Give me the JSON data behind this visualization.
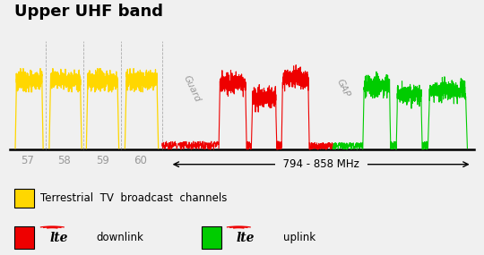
{
  "title": "Upper UHF band",
  "title_fontsize": 13,
  "bg_color": "#f0f0f0",
  "spectrum_bg": "#ffffff",
  "channel_labels": [
    "57",
    "58",
    "59",
    "60"
  ],
  "freq_label": "794 - 858 MHz",
  "guard_label": "Guard",
  "gap_label": "GAP",
  "legend_tv": "Terrestrial  TV  broadcast  channels",
  "legend_dl": "downlink",
  "legend_ul": "uplink",
  "yellow_color": "#FFD700",
  "red_color": "#EE0000",
  "green_color": "#00CC00",
  "gray_text": "#999999",
  "guard_text_color": "#999999",
  "gap_text_color": "#999999"
}
